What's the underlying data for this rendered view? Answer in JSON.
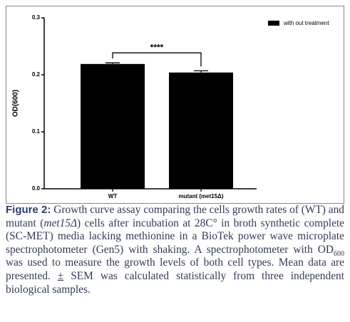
{
  "chart_data": {
    "type": "bar",
    "ylabel": "OD(600)",
    "categories": [
      "WT",
      "mutant (met15Δ)"
    ],
    "series": [
      {
        "name": "with out treatment",
        "color": "#000000",
        "values": [
          0.219,
          0.204
        ],
        "errors": [
          0.002,
          0.003
        ]
      }
    ],
    "ylim": [
      0,
      0.3
    ],
    "yticks": [
      {
        "value": 0,
        "label": "0.0"
      },
      0.1,
      0.2,
      0.3
    ],
    "annotation": "****",
    "legend": "upper right"
  },
  "caption": {
    "label": "Figure 2:",
    "segments": [
      " Growth curve assay comparing the cells growth rates of (WT) and mutant (",
      "met15Δ",
      ") cells after incubation at 28C° in broth synthetic complete (SC-MET) media lacking methionine in a BioTek power wave microplate spectrophotometer (Gen5) with shaking. A spectrophotometer with OD",
      "600",
      " was used to measure the growth levels of both cell types. Mean data are presented. ",
      "±",
      " SEM was calculated statistically from three independent biological samples."
    ]
  }
}
